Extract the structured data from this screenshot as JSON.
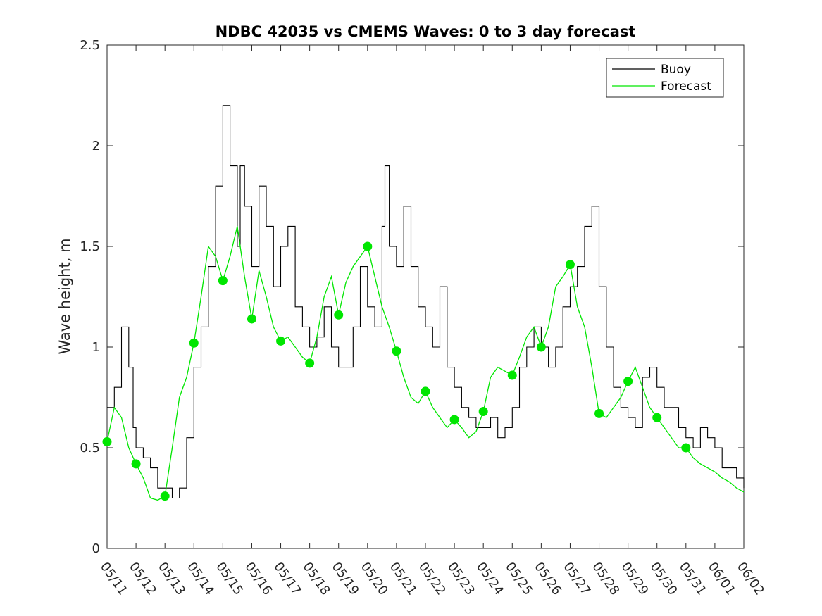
{
  "chart_data": {
    "type": "line",
    "title": "NDBC 42035 vs CMEMS Waves: 0 to 3 day forecast",
    "xlabel": "",
    "ylabel": "Wave height, m",
    "x_tick_labels": [
      "05/11",
      "05/12",
      "05/13",
      "05/14",
      "05/15",
      "05/16",
      "05/17",
      "05/18",
      "05/19",
      "05/20",
      "05/21",
      "05/22",
      "05/23",
      "05/24",
      "05/25",
      "05/26",
      "05/27",
      "05/28",
      "05/29",
      "05/30",
      "05/31",
      "06/01",
      "06/02"
    ],
    "xlim": [
      0,
      22
    ],
    "ylim": [
      0,
      2.5
    ],
    "y_ticks": [
      0,
      0.5,
      1,
      1.5,
      2,
      2.5
    ],
    "y_tick_labels": [
      "0",
      "0.5",
      "1",
      "1.5",
      "2",
      "2.5"
    ],
    "grid": false,
    "legend": {
      "placement": "top-right",
      "entries": [
        "Buoy",
        "Forecast"
      ]
    },
    "colors": {
      "buoy": "#000000",
      "forecast": "#00e600"
    },
    "series": [
      {
        "name": "Buoy",
        "x": [
          0.0,
          0.25,
          0.5,
          0.6,
          0.75,
          0.9,
          1.0,
          1.25,
          1.5,
          1.75,
          2.0,
          2.25,
          2.5,
          2.75,
          3.0,
          3.25,
          3.5,
          3.75,
          4.0,
          4.25,
          4.5,
          4.6,
          4.75,
          5.0,
          5.25,
          5.5,
          5.75,
          6.0,
          6.25,
          6.5,
          6.75,
          7.0,
          7.25,
          7.5,
          7.75,
          8.0,
          8.25,
          8.5,
          8.75,
          9.0,
          9.25,
          9.5,
          9.6,
          9.75,
          10.0,
          10.25,
          10.5,
          10.75,
          11.0,
          11.25,
          11.5,
          11.75,
          12.0,
          12.25,
          12.5,
          12.75,
          13.0,
          13.25,
          13.5,
          13.75,
          14.0,
          14.25,
          14.5,
          14.75,
          15.0,
          15.25,
          15.5,
          15.75,
          16.0,
          16.25,
          16.5,
          16.75,
          17.0,
          17.25,
          17.5,
          17.75,
          18.0,
          18.25,
          18.5,
          18.75,
          19.0,
          19.25,
          19.5,
          19.75,
          20.0,
          20.25,
          20.5,
          20.75,
          21.0,
          21.25,
          21.5,
          21.75,
          22.0
        ],
        "values": [
          0.7,
          0.8,
          1.1,
          1.1,
          0.9,
          0.6,
          0.5,
          0.45,
          0.4,
          0.3,
          0.3,
          0.25,
          0.3,
          0.55,
          0.9,
          1.1,
          1.4,
          1.8,
          2.2,
          1.9,
          1.5,
          1.9,
          1.7,
          1.4,
          1.8,
          1.6,
          1.3,
          1.5,
          1.6,
          1.2,
          1.1,
          1.0,
          1.05,
          1.2,
          1.0,
          0.9,
          0.9,
          1.1,
          1.4,
          1.2,
          1.1,
          1.6,
          1.9,
          1.5,
          1.4,
          1.7,
          1.4,
          1.2,
          1.1,
          1.0,
          1.3,
          0.9,
          0.8,
          0.7,
          0.65,
          0.6,
          0.6,
          0.65,
          0.55,
          0.6,
          0.7,
          0.9,
          1.0,
          1.1,
          1.0,
          0.9,
          1.0,
          1.2,
          1.3,
          1.4,
          1.6,
          1.7,
          1.3,
          1.0,
          0.8,
          0.7,
          0.65,
          0.6,
          0.85,
          0.9,
          0.8,
          0.7,
          0.7,
          0.6,
          0.55,
          0.5,
          0.6,
          0.55,
          0.5,
          0.4,
          0.4,
          0.35,
          0.3
        ]
      },
      {
        "name": "Forecast",
        "x": [
          0.0,
          0.25,
          0.5,
          0.75,
          1.0,
          1.25,
          1.5,
          1.75,
          2.0,
          2.25,
          2.5,
          2.75,
          3.0,
          3.25,
          3.5,
          3.75,
          4.0,
          4.25,
          4.5,
          4.75,
          5.0,
          5.25,
          5.5,
          5.75,
          6.0,
          6.25,
          6.5,
          6.75,
          7.0,
          7.25,
          7.5,
          7.75,
          8.0,
          8.25,
          8.5,
          8.75,
          9.0,
          9.25,
          9.5,
          9.75,
          10.0,
          10.25,
          10.5,
          10.75,
          11.0,
          11.25,
          11.5,
          11.75,
          12.0,
          12.25,
          12.5,
          12.75,
          13.0,
          13.25,
          13.5,
          13.75,
          14.0,
          14.25,
          14.5,
          14.75,
          15.0,
          15.25,
          15.5,
          15.75,
          16.0,
          16.25,
          16.5,
          16.75,
          17.0,
          17.25,
          17.5,
          17.75,
          18.0,
          18.25,
          18.5,
          18.75,
          19.0,
          19.25,
          19.5,
          19.75,
          20.0,
          20.25,
          20.5,
          20.75,
          21.0,
          21.25,
          21.5,
          21.75,
          22.0
        ],
        "values": [
          0.53,
          0.7,
          0.65,
          0.5,
          0.42,
          0.35,
          0.25,
          0.24,
          0.26,
          0.5,
          0.75,
          0.85,
          1.02,
          1.25,
          1.5,
          1.45,
          1.33,
          1.45,
          1.6,
          1.35,
          1.14,
          1.38,
          1.25,
          1.1,
          1.03,
          1.05,
          1.0,
          0.95,
          0.92,
          1.05,
          1.25,
          1.35,
          1.16,
          1.32,
          1.4,
          1.45,
          1.5,
          1.35,
          1.2,
          1.1,
          0.98,
          0.85,
          0.75,
          0.72,
          0.78,
          0.7,
          0.65,
          0.6,
          0.64,
          0.6,
          0.55,
          0.58,
          0.68,
          0.85,
          0.9,
          0.88,
          0.86,
          0.95,
          1.05,
          1.1,
          1.0,
          1.1,
          1.3,
          1.35,
          1.41,
          1.2,
          1.1,
          0.9,
          0.67,
          0.65,
          0.7,
          0.75,
          0.83,
          0.9,
          0.8,
          0.7,
          0.65,
          0.6,
          0.55,
          0.5,
          0.5,
          0.45,
          0.42,
          0.4,
          0.38,
          0.35,
          0.33,
          0.3,
          0.28
        ]
      }
    ],
    "forecast_markers": {
      "x": [
        0,
        1,
        2,
        3,
        4,
        5,
        6,
        7,
        8,
        9,
        10,
        11,
        12,
        13,
        14,
        15,
        16,
        17,
        18,
        19,
        20
      ],
      "values": [
        0.53,
        0.42,
        0.26,
        1.02,
        1.33,
        1.14,
        1.03,
        0.92,
        1.16,
        1.5,
        0.98,
        0.78,
        0.64,
        0.68,
        0.86,
        1.0,
        1.41,
        0.67,
        0.83,
        0.65,
        0.5
      ]
    }
  }
}
